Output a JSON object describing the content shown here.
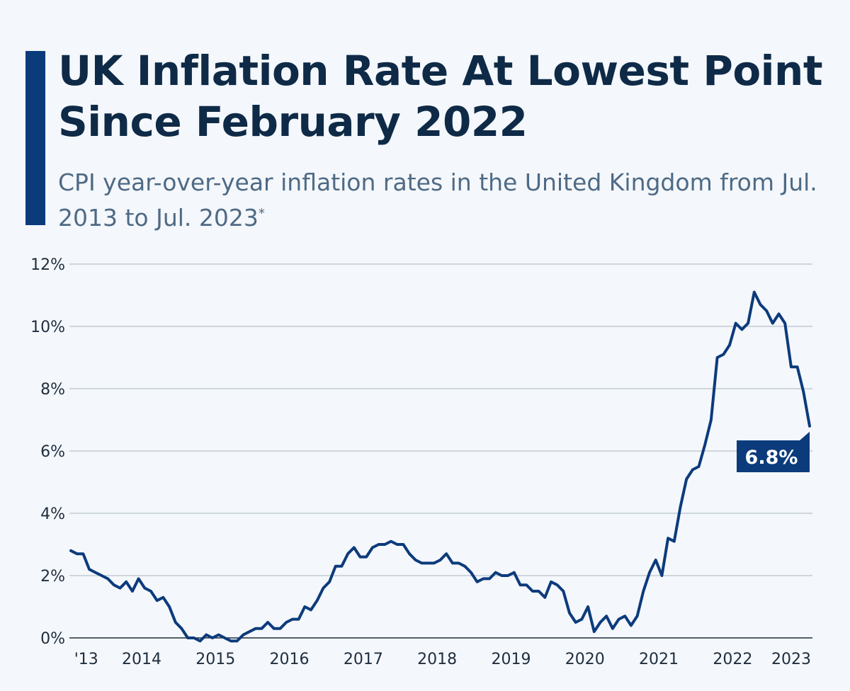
{
  "header": {
    "title": "UK Inflation Rate At Lowest Point Since February 2022",
    "subtitle": "CPI year-over-year inflation rates in the United Kingdom from Jul. 2013 to Jul. 2023",
    "subtitle_mark": "*"
  },
  "colors": {
    "line": "#0c3b7c",
    "accent_bar": "#0c3b7c",
    "title": "#0e2a47",
    "background": "#f4f7fb"
  },
  "chart_data": {
    "type": "line",
    "title": "UK Inflation Rate At Lowest Point Since February 2022",
    "xlabel": "",
    "ylabel": "",
    "x_start": "2013-07",
    "x_end": "2023-07",
    "x_frequency": "monthly",
    "ylim": [
      0,
      12
    ],
    "y_ticks": [
      0,
      2,
      4,
      6,
      8,
      10,
      12
    ],
    "y_tick_labels": [
      "0%",
      "2%",
      "4%",
      "6%",
      "8%",
      "10%",
      "12%"
    ],
    "x_tick_labels": [
      "'13",
      "2014",
      "2015",
      "2016",
      "2017",
      "2018",
      "2019",
      "2020",
      "2021",
      "2022",
      "2023"
    ],
    "grid": true,
    "annotation": {
      "date": "2023-07",
      "text": "6.8%"
    },
    "values": [
      2.8,
      2.7,
      2.7,
      2.2,
      2.1,
      2.0,
      1.9,
      1.7,
      1.6,
      1.8,
      1.5,
      1.9,
      1.6,
      1.5,
      1.2,
      1.3,
      1.0,
      0.5,
      0.3,
      0.0,
      0.0,
      -0.1,
      0.1,
      0.0,
      0.1,
      0.0,
      -0.1,
      -0.1,
      0.1,
      0.2,
      0.3,
      0.3,
      0.5,
      0.3,
      0.3,
      0.5,
      0.6,
      0.6,
      1.0,
      0.9,
      1.2,
      1.6,
      1.8,
      2.3,
      2.3,
      2.7,
      2.9,
      2.6,
      2.6,
      2.9,
      3.0,
      3.0,
      3.1,
      3.0,
      3.0,
      2.7,
      2.5,
      2.4,
      2.4,
      2.4,
      2.5,
      2.7,
      2.4,
      2.4,
      2.3,
      2.1,
      1.8,
      1.9,
      1.9,
      2.1,
      2.0,
      2.0,
      2.1,
      1.7,
      1.7,
      1.5,
      1.5,
      1.3,
      1.8,
      1.7,
      1.5,
      0.8,
      0.5,
      0.6,
      1.0,
      0.2,
      0.5,
      0.7,
      0.3,
      0.6,
      0.7,
      0.4,
      0.7,
      1.5,
      2.1,
      2.5,
      2.0,
      3.2,
      3.1,
      4.2,
      5.1,
      5.4,
      5.5,
      6.2,
      7.0,
      9.0,
      9.1,
      9.4,
      10.1,
      9.9,
      10.1,
      11.1,
      10.7,
      10.5,
      10.1,
      10.4,
      10.1,
      8.7,
      8.7,
      7.9,
      6.8
    ]
  }
}
